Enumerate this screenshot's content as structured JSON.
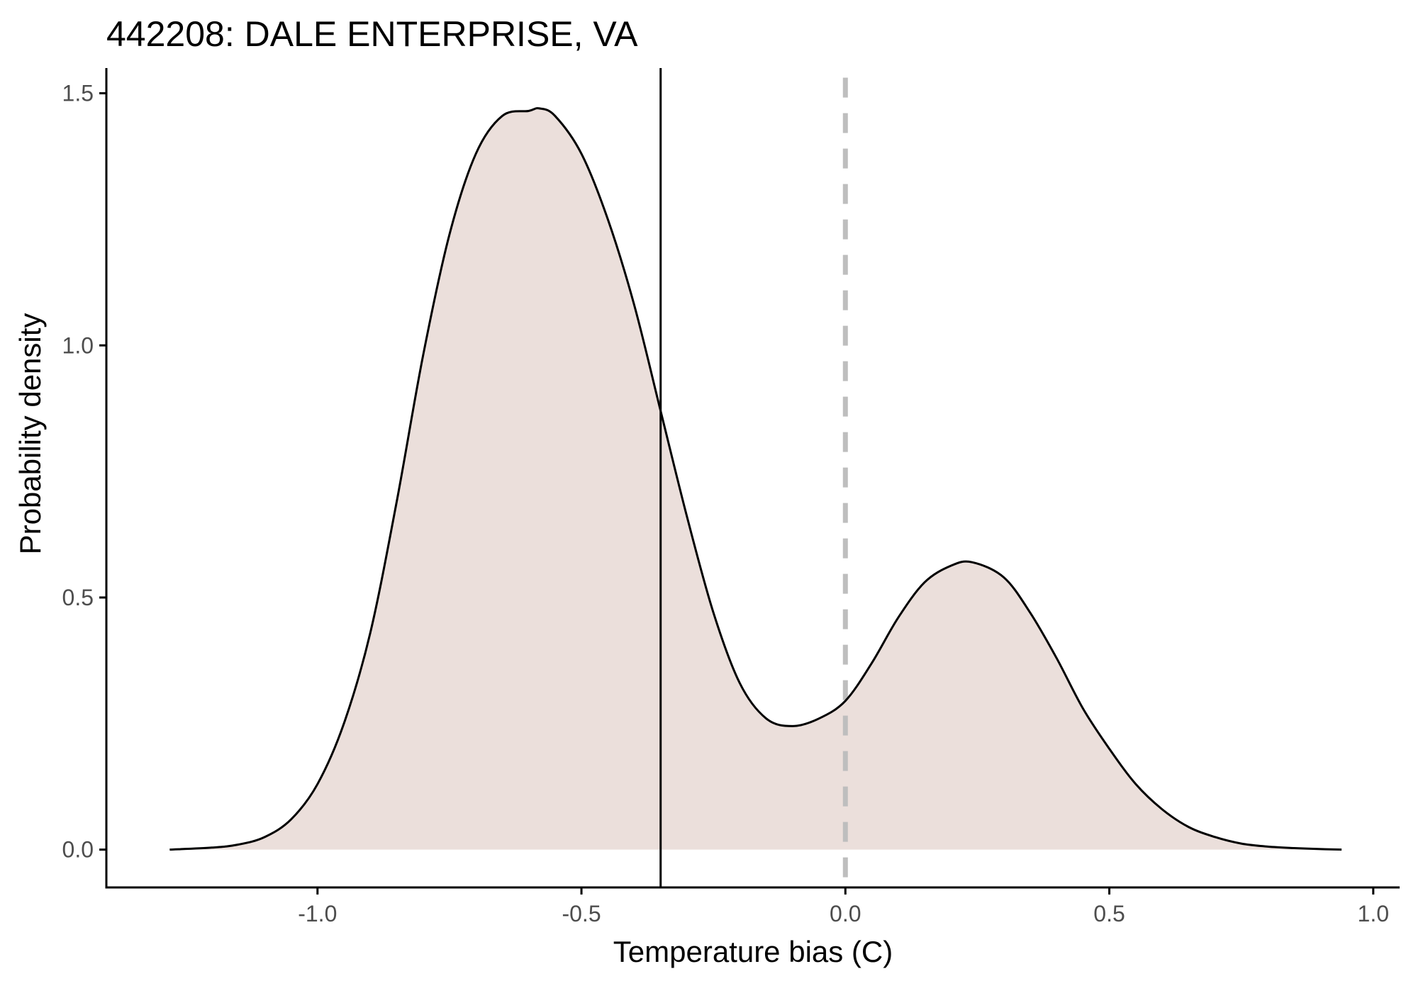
{
  "colors": {
    "background": "#ffffff",
    "density_fill": "#ebdfdb",
    "density_line": "#000000",
    "reference_line": "#000000",
    "zero_line": "#bebebe",
    "axis": "#000000",
    "tick_text": "#4d4d4d"
  },
  "chart_data": {
    "type": "area",
    "title": "442208: DALE ENTERPRISE, VA",
    "xlabel": "Temperature bias (C)",
    "ylabel": "Probability density",
    "xlim": [
      -1.4,
      1.05
    ],
    "ylim": [
      -0.075,
      1.55
    ],
    "x_ticks": [
      -1.0,
      -0.5,
      0.0,
      0.5,
      1.0
    ],
    "x_tick_labels": [
      "-1.0",
      "-0.5",
      "0.0",
      "0.5",
      "1.0"
    ],
    "y_ticks": [
      0.0,
      0.5,
      1.0,
      1.5
    ],
    "y_tick_labels": [
      "0.0",
      "0.5",
      "1.0",
      "1.5"
    ],
    "grid": false,
    "legend": "none",
    "reference_lines": [
      {
        "x": -0.35,
        "style": "solid"
      },
      {
        "x": 0.0,
        "style": "dashed"
      }
    ],
    "series": [
      {
        "x": [
          -1.28,
          -1.2,
          -1.15,
          -1.1,
          -1.05,
          -1.0,
          -0.95,
          -0.9,
          -0.85,
          -0.8,
          -0.75,
          -0.7,
          -0.65,
          -0.6,
          -0.58,
          -0.55,
          -0.5,
          -0.45,
          -0.4,
          -0.35,
          -0.3,
          -0.25,
          -0.2,
          -0.15,
          -0.1,
          -0.05,
          0.0,
          0.05,
          0.1,
          0.15,
          0.2,
          0.24,
          0.3,
          0.35,
          0.4,
          0.45,
          0.5,
          0.55,
          0.6,
          0.65,
          0.7,
          0.75,
          0.8,
          0.85,
          0.9,
          0.94
        ],
        "y": [
          0.0,
          0.004,
          0.01,
          0.025,
          0.06,
          0.13,
          0.25,
          0.43,
          0.69,
          0.98,
          1.22,
          1.38,
          1.455,
          1.465,
          1.47,
          1.455,
          1.38,
          1.25,
          1.08,
          0.87,
          0.66,
          0.47,
          0.33,
          0.26,
          0.245,
          0.26,
          0.295,
          0.37,
          0.46,
          0.53,
          0.563,
          0.57,
          0.54,
          0.47,
          0.38,
          0.28,
          0.2,
          0.13,
          0.08,
          0.045,
          0.025,
          0.012,
          0.006,
          0.003,
          0.001,
          0.0
        ]
      }
    ]
  }
}
